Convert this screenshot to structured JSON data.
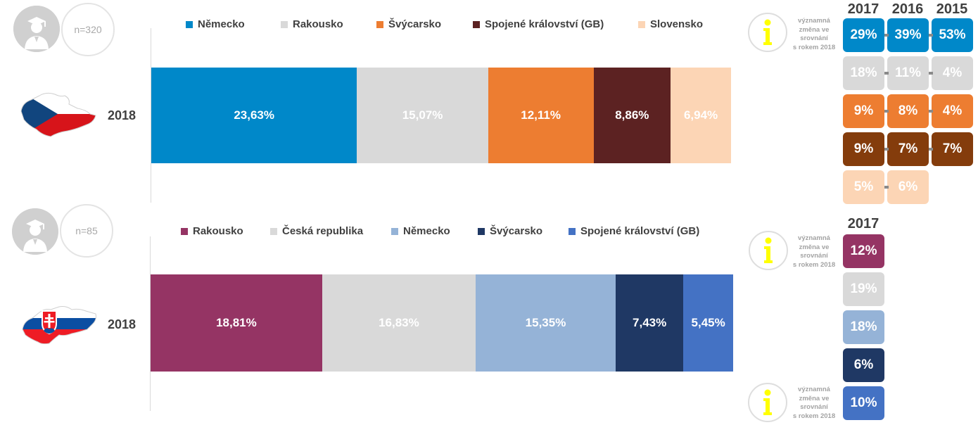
{
  "colors": {
    "nemecko_cz": "#0088c9",
    "rakousko_cz": "#d9d9d9",
    "svycarsko_cz": "#ed7d31",
    "gb_cz": "#5c2222",
    "slovensko_cz": "#fcd5b5",
    "rakousko_sk": "#953464",
    "cr_sk": "#d9d9d9",
    "nemecko_sk": "#95b3d7",
    "svycarsko_sk": "#1f3864",
    "gb_sk": "#4472c4",
    "info_i": "#ffff00"
  },
  "top": {
    "n_label": "n=320",
    "year_label": "2018",
    "icons": {
      "avatar": "graduate-avatar-icon",
      "flag": "czech-map-flag-icon",
      "info": "info-icon"
    },
    "info_note": [
      "významná",
      "změna ve",
      "srovnání",
      "s rokem 2018"
    ],
    "col_headers": [
      "2017",
      "2016",
      "2015"
    ],
    "table": [
      {
        "values": [
          "29%",
          "39%",
          "53%"
        ],
        "bg": "#0088c9",
        "fg": "#ffffff"
      },
      {
        "values": [
          "18%",
          "11%",
          "4%"
        ],
        "bg": "#d9d9d9",
        "fg": "#ffffff"
      },
      {
        "values": [
          "9%",
          "8%",
          "4%"
        ],
        "bg": "#ed7d31",
        "fg": "#ffffff"
      },
      {
        "values": [
          "9%",
          "7%",
          "7%"
        ],
        "bg": "#843c0c",
        "fg": "#ffffff"
      },
      {
        "values": [
          "5%",
          "6%",
          ""
        ],
        "bg": "#fcd5b5",
        "fg": "#ffffff"
      }
    ]
  },
  "bottom": {
    "n_label": "n=85",
    "year_label": "2018",
    "icons": {
      "avatar": "graduate-avatar-icon",
      "flag": "slovak-map-flag-icon",
      "info": "info-icon"
    },
    "info_note": [
      "významná",
      "změna ve",
      "srovnání",
      "s rokem 2018"
    ],
    "col_headers": [
      "2017"
    ],
    "table": [
      {
        "values": [
          "12%"
        ],
        "bg": "#953464",
        "fg": "#ffffff"
      },
      {
        "values": [
          "19%"
        ],
        "bg": "#d9d9d9",
        "fg": "#ffffff"
      },
      {
        "values": [
          "18%"
        ],
        "bg": "#95b3d7",
        "fg": "#ffffff"
      },
      {
        "values": [
          "6%"
        ],
        "bg": "#1f3864",
        "fg": "#ffffff"
      },
      {
        "values": [
          "10%"
        ],
        "bg": "#4472c4",
        "fg": "#ffffff"
      }
    ]
  },
  "chart_data": [
    {
      "type": "bar",
      "orientation": "horizontal-stacked",
      "categories": [
        "2018"
      ],
      "series": [
        {
          "name": "Německo",
          "values": [
            23.63
          ],
          "label": "23,63%",
          "color": "#0088c9"
        },
        {
          "name": "Rakousko",
          "values": [
            15.07
          ],
          "label": "15,07%",
          "color": "#d9d9d9"
        },
        {
          "name": "Švýcarsko",
          "values": [
            12.11
          ],
          "label": "12,11%",
          "color": "#ed7d31"
        },
        {
          "name": "Spojené království (GB)",
          "values": [
            8.86
          ],
          "label": "8,86%",
          "color": "#5c2222"
        },
        {
          "name": "Slovensko",
          "values": [
            6.94
          ],
          "label": "6,94%",
          "color": "#fcd5b5"
        }
      ],
      "legend": "top"
    },
    {
      "type": "bar",
      "orientation": "horizontal-stacked",
      "categories": [
        "2018"
      ],
      "series": [
        {
          "name": "Rakousko",
          "values": [
            18.81
          ],
          "label": "18,81%",
          "color": "#953464"
        },
        {
          "name": "Česká republika",
          "values": [
            16.83
          ],
          "label": "16,83%",
          "color": "#d9d9d9"
        },
        {
          "name": "Německo",
          "values": [
            15.35
          ],
          "label": "15,35%",
          "color": "#95b3d7"
        },
        {
          "name": "Švýcarsko",
          "values": [
            7.43
          ],
          "label": "7,43%",
          "color": "#1f3864"
        },
        {
          "name": "Spojené království (GB)",
          "values": [
            5.45
          ],
          "label": "5,45%",
          "color": "#4472c4"
        }
      ],
      "legend": "top"
    }
  ]
}
